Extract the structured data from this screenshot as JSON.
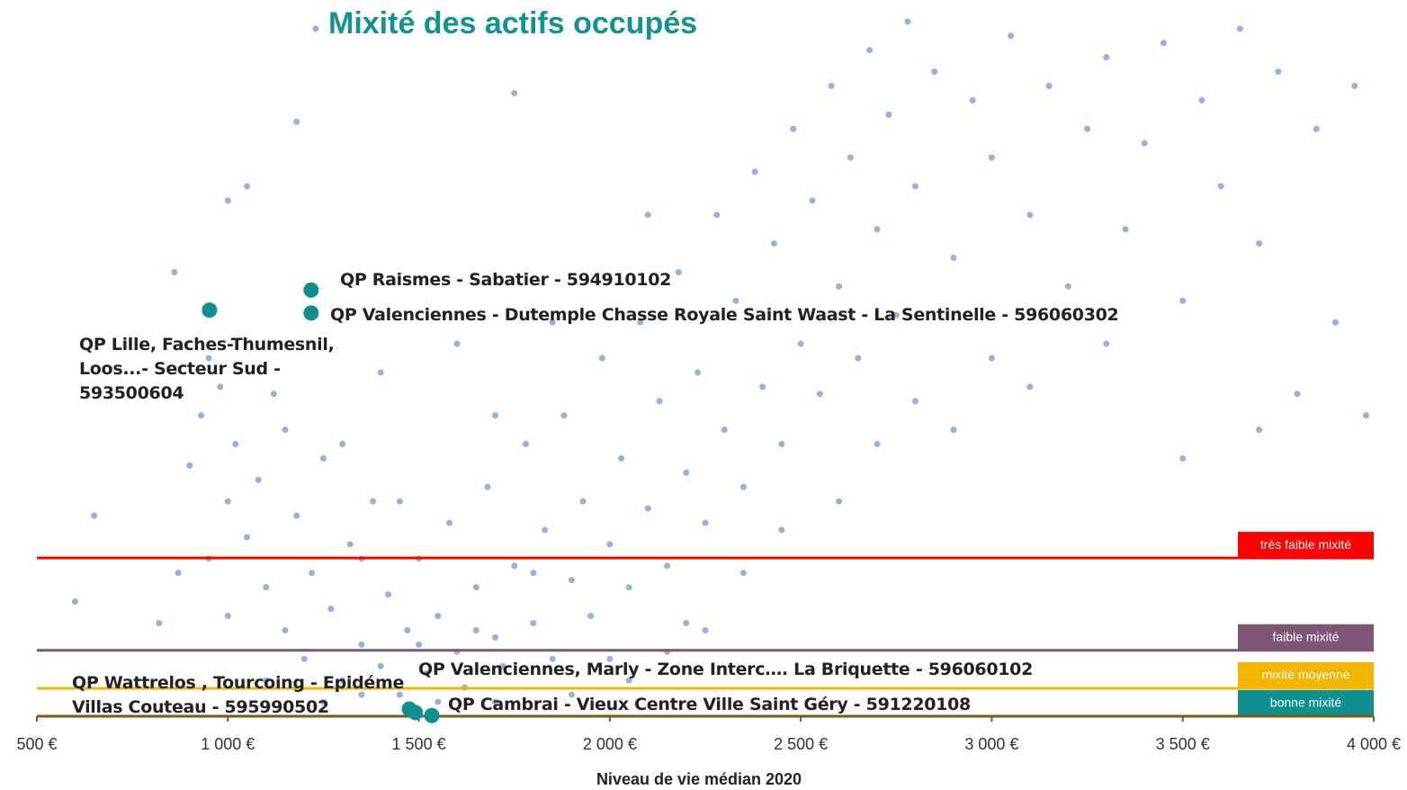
{
  "chart_data": {
    "type": "scatter",
    "title": "Mixité des actifs occupés",
    "xlabel": "Niveau de vie médian 2020",
    "xlim": [
      500,
      4000
    ],
    "xticks": [
      {
        "value": 500,
        "label": "500 €"
      },
      {
        "value": 1000,
        "label": "1 000 €"
      },
      {
        "value": 1500,
        "label": "1 500 €"
      },
      {
        "value": 2000,
        "label": "2 000 €"
      },
      {
        "value": 2500,
        "label": "2 500 €"
      },
      {
        "value": 3000,
        "label": "3 000 €"
      },
      {
        "value": 3500,
        "label": "3 500 €"
      },
      {
        "value": 4000,
        "label": "4 000 €"
      }
    ],
    "ylim": [
      0,
      1
    ],
    "series": [
      {
        "color": "#94b2db",
        "x": [
          600,
          650,
          820,
          870,
          900,
          930,
          950,
          980,
          1000,
          1020,
          1050,
          1080,
          1100,
          1120,
          1150,
          1180,
          1200,
          1220,
          1250,
          1270,
          1300,
          1320,
          1350,
          1380,
          1400,
          1420,
          1450,
          1470,
          1500,
          1520,
          1550,
          1580,
          1600,
          1620,
          1650,
          1680,
          1700,
          1720,
          1750,
          1780,
          1800,
          1830,
          1850,
          1880,
          1900,
          1930,
          1950,
          1980,
          2000,
          2030,
          2050,
          2080,
          2100,
          2130,
          2150,
          2180,
          2200,
          2230,
          2250,
          2280,
          2300,
          2330,
          2350,
          2380,
          2400,
          2430,
          2450,
          2480,
          2500,
          2530,
          2550,
          2580,
          2600,
          2630,
          2650,
          2680,
          2700,
          2730,
          2750,
          2780,
          2800,
          2850,
          2900,
          2950,
          3000,
          3050,
          3100,
          3150,
          3200,
          3250,
          3300,
          3350,
          3400,
          3450,
          3500,
          3550,
          3600,
          3650,
          3700,
          3750,
          3800,
          3850,
          3900,
          3950,
          3980,
          1000,
          1050,
          860,
          1180,
          1230,
          1750,
          2100,
          1600,
          1400,
          1300,
          1450,
          1700,
          1850,
          2200,
          2000,
          1100,
          1250,
          1350,
          1550,
          1700,
          1900,
          2050,
          2250,
          2350,
          2450,
          2600,
          2700,
          2800,
          2900,
          3000,
          3100,
          3300,
          3500,
          3700,
          950,
          1000,
          1150,
          1350,
          1500,
          1650,
          1800,
          2150
        ],
        "values": [
          0.16,
          0.28,
          0.13,
          0.2,
          0.35,
          0.42,
          0.5,
          0.46,
          0.3,
          0.38,
          0.25,
          0.33,
          0.18,
          0.45,
          0.12,
          0.28,
          0.08,
          0.2,
          0.36,
          0.15,
          0.05,
          0.24,
          0.1,
          0.3,
          0.07,
          0.17,
          0.03,
          0.12,
          0.22,
          0.06,
          0.14,
          0.27,
          0.09,
          0.04,
          0.18,
          0.32,
          0.11,
          0.07,
          0.21,
          0.38,
          0.13,
          0.26,
          0.08,
          0.42,
          0.19,
          0.3,
          0.14,
          0.5,
          0.24,
          0.36,
          0.18,
          0.55,
          0.29,
          0.44,
          0.21,
          0.62,
          0.34,
          0.48,
          0.27,
          0.7,
          0.4,
          0.58,
          0.32,
          0.76,
          0.46,
          0.66,
          0.38,
          0.82,
          0.52,
          0.72,
          0.45,
          0.88,
          0.6,
          0.78,
          0.5,
          0.93,
          0.68,
          0.84,
          0.56,
          0.97,
          0.74,
          0.9,
          0.64,
          0.86,
          0.78,
          0.95,
          0.7,
          0.88,
          0.6,
          0.82,
          0.92,
          0.68,
          0.8,
          0.94,
          0.58,
          0.86,
          0.74,
          0.96,
          0.66,
          0.9,
          0.45,
          0.82,
          0.55,
          0.88,
          0.42,
          0.72,
          0.74,
          0.62,
          0.83,
          0.96,
          0.87,
          0.7,
          0.52,
          0.48,
          0.38,
          0.3,
          0.42,
          0.55,
          0.13,
          0.08,
          0.05,
          0.02,
          0.03,
          0.02,
          0.02,
          0.03,
          0.05,
          0.12,
          0.2,
          0.26,
          0.3,
          0.38,
          0.44,
          0.4,
          0.5,
          0.46,
          0.52,
          0.36,
          0.4,
          0.22,
          0.14,
          0.4,
          0.22,
          0.1,
          0.12,
          0.2,
          0.09
        ]
      },
      {
        "color": "#0e9090",
        "x": [
          1218,
          1218,
          952,
          1475,
          1491,
          1534
        ],
        "values": [
          0.595,
          0.563,
          0.567,
          0.01,
          0.005,
          0.001
        ],
        "labels": [
          "QP Raismes - Sabatier - 594910102",
          "QP Valenciennes - Dutemple Chasse Royale Saint Waast  - La Sentinelle - 596060302",
          "QP Lille, Faches-Thumesnil, Loos...- Secteur Sud - 593500604",
          "QP Wattrelos , Tourcoing - Epidéme Villas Couteau - 595990502",
          "QP Valenciennes, Marly - Zone Interc…. La Briquette - 596060102",
          "QP Cambrai - Vieux Centre Ville Saint Géry - 591220108"
        ]
      }
    ],
    "thresholds": [
      {
        "label": "très faible mixité",
        "color": "#ff0000",
        "value": 0.221
      },
      {
        "label": "faible mixité",
        "color": "#7f5576",
        "value": 0.092
      },
      {
        "label": "mixité moyenne",
        "color": "#f5b400",
        "value": 0.039
      },
      {
        "label": "bonne mixité",
        "color": "#0e9090",
        "value": 0
      }
    ]
  }
}
